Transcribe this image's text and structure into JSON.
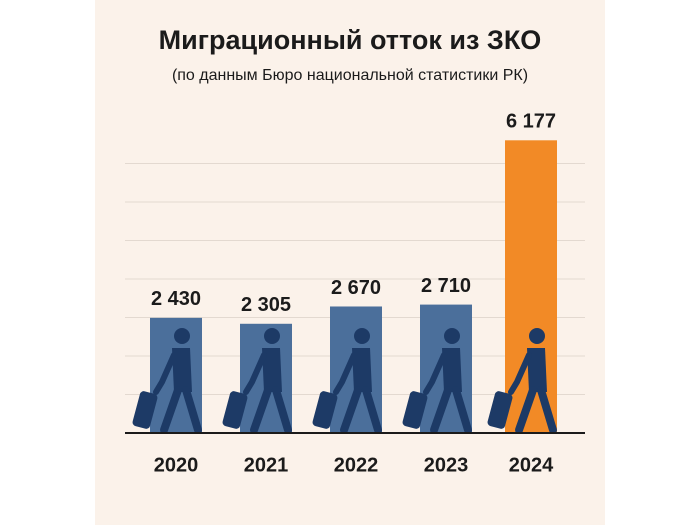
{
  "chart_data": {
    "type": "bar",
    "title": "Миграционный отток из ЗКО",
    "subtitle": "(по данным Бюро национальной статистики РК)",
    "categories": [
      "2020",
      "2021",
      "2022",
      "2023",
      "2024"
    ],
    "values": [
      2430,
      2305,
      2670,
      2710,
      6177
    ],
    "value_labels": [
      "2 430",
      "2 305",
      "2 670",
      "2 710",
      "6 177"
    ],
    "colors": [
      "#4b6f9b",
      "#4b6f9b",
      "#4b6f9b",
      "#4b6f9b",
      "#f28a26"
    ],
    "ylim": [
      0,
      6500
    ],
    "grid": true
  }
}
